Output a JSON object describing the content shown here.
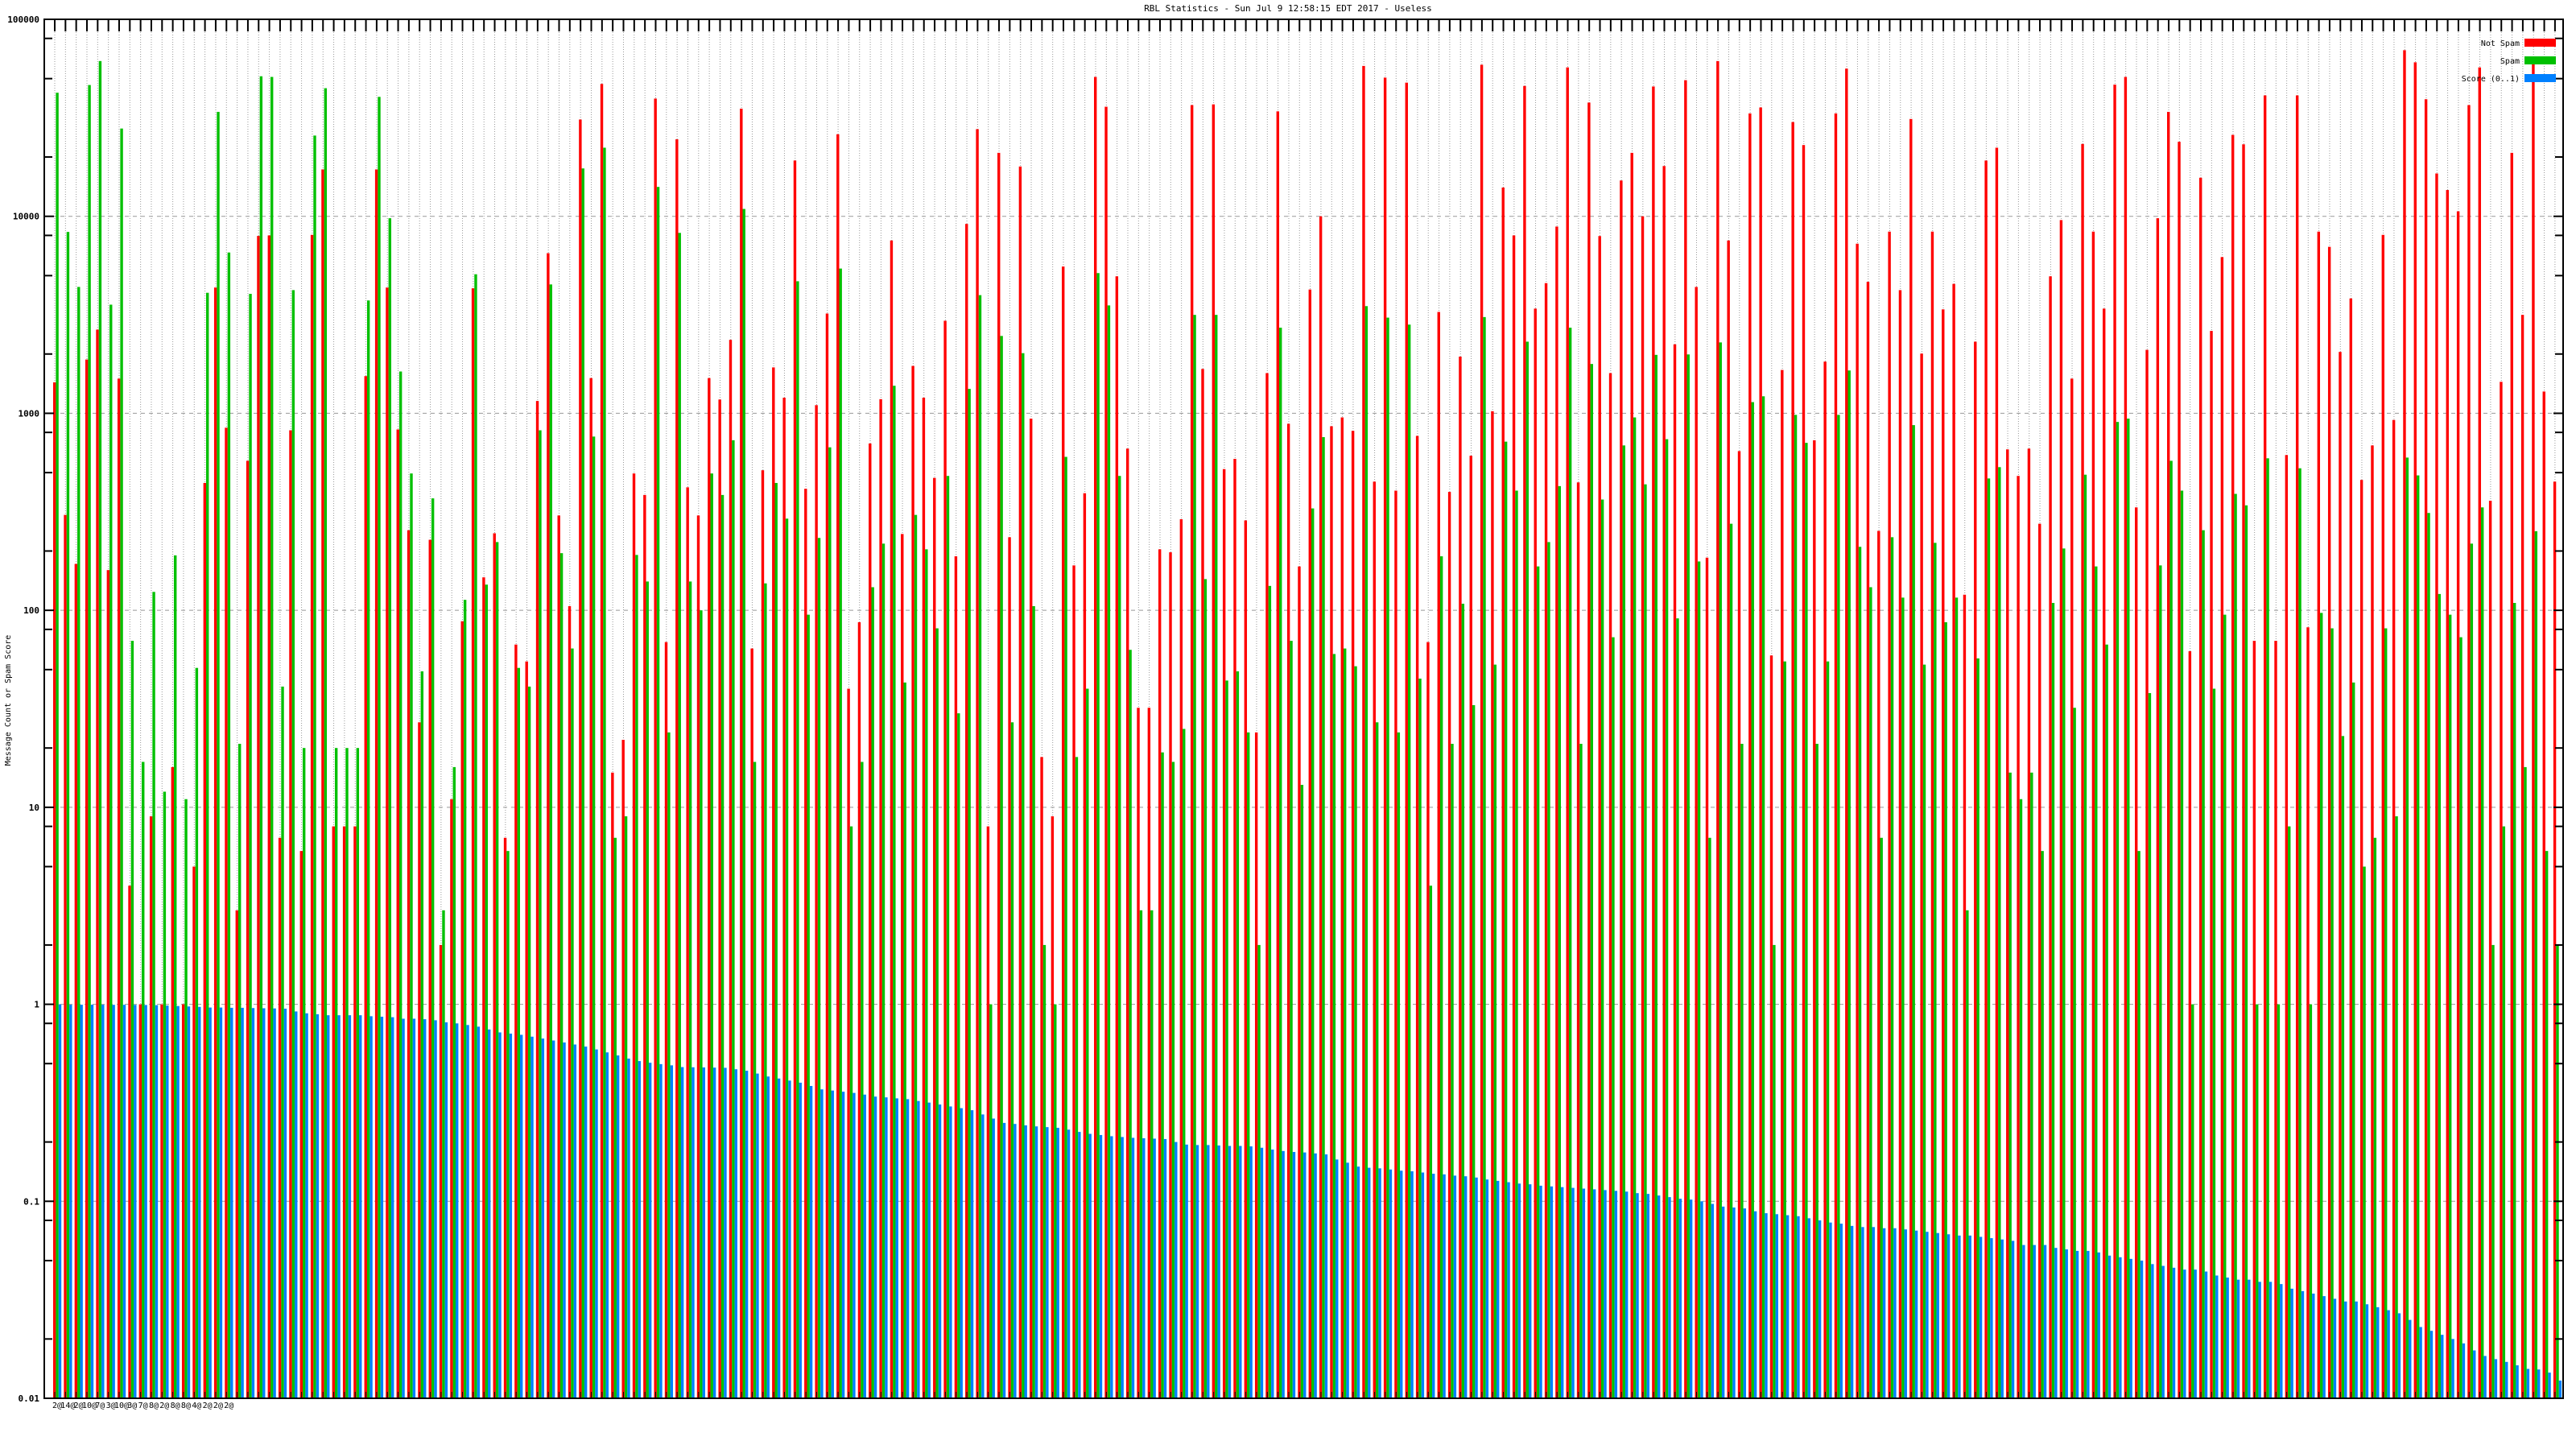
{
  "chart_data": {
    "type": "bar",
    "title": "RBL Statistics - Sun Jul  9 12:58:15 EDT 2017 - Useless",
    "xlabel": "",
    "ylabel": "Message Count or Spam Score",
    "yscale": "log",
    "ylim": [
      0.01,
      100000
    ],
    "ytick_labels": [
      "100000",
      "10000",
      "1000",
      "100",
      "10",
      "1",
      "0.1",
      "0.01"
    ],
    "ytick_values": [
      100000,
      10000,
      1000,
      100,
      10,
      1,
      0.1,
      0.01
    ],
    "grid": true,
    "legend_position": "top-right",
    "x_labels": [
      "2@",
      "14@",
      "2@",
      "10@",
      "7@",
      "3@",
      "10@",
      "3@",
      "7@",
      "8@",
      "2@",
      "8@",
      "8@",
      "4@",
      "2@",
      "2@",
      "2@"
    ],
    "series": [
      {
        "name": "Not Spam",
        "color": "#ff0000",
        "values": [
          1436,
          305,
          172,
          1875,
          2660,
          160,
          1500,
          4,
          1,
          9,
          1,
          16,
          1,
          5,
          443,
          4350,
          845,
          3,
          574,
          7950,
          8000,
          7,
          820,
          6,
          8050,
          17300,
          8,
          8,
          8,
          1545,
          17300,
          4350,
          828,
          255,
          27,
          228,
          2,
          11,
          88,
          4310,
          147,
          246,
          7,
          67,
          55,
          1155,
          6500,
          303,
          105,
          31000,
          1510,
          47000,
          15,
          22,
          495,
          385,
          39600,
          69,
          24600,
          421,
          303,
          1510,
          1175,
          2360,
          35200,
          64,
          514,
          1710,
          1200,
          19200,
          414,
          1100,
          3210,
          26100,
          40,
          87,
          703,
          1180,
          7540,
          244,
          1740,
          1200,
          470,
          2950,
          188,
          9150,
          27700,
          8,
          21000,
          235,
          17900,
          940,
          18,
          9,
          5560,
          169,
          393,
          51000,
          36000,
          4960,
          662,
          32,
          32,
          204,
          197,
          290,
          36700,
          1680,
          37000,
          521,
          587,
          286,
          24,
          1600,
          34100,
          885,
          167,
          4250,
          10000,
          860,
          953,
          815,
          58000,
          450,
          50600,
          405,
          47700,
          768,
          69,
          3270,
          399,
          1940,
          609,
          58800,
          1025,
          14000,
          8000,
          45900,
          3400,
          4580,
          8870,
          57000,
          446,
          37800,
          7940,
          1600,
          15200,
          21000,
          10000,
          45600,
          18000,
          2240,
          49100,
          4380,
          185,
          61400,
          7540,
          643,
          33300,
          35700,
          59,
          1660,
          30100,
          23000,
          730,
          1830,
          33300,
          56200,
          7260,
          4650,
          253,
          8360,
          4220,
          31200,
          2010,
          8360,
          3370,
          4540,
          120,
          2310,
          19200,
          22300,
          656,
          481,
          662,
          275,
          4960,
          9570,
          1500,
          23300,
          8360,
          3400,
          46600,
          51000,
          333,
          2100,
          9780,
          33900,
          23900,
          62,
          15700,
          2620,
          6210,
          25900,
          23200,
          70,
          41100,
          70,
          614,
          41100,
          82,
          8360,
          7000,
          2050,
          3830,
          459,
          687,
          8050,
          925,
          69700,
          60500,
          39300,
          16500,
          13600,
          10600,
          36700,
          57000,
          360,
          1445,
          21000,
          3160,
          63000,
          1290,
          450
        ]
      },
      {
        "name": "Spam",
        "color": "#00c000",
        "values": [
          42400,
          8330,
          4380,
          46400,
          61400,
          3560,
          27900,
          70,
          17,
          124,
          12,
          190,
          11,
          51,
          4090,
          33900,
          6550,
          21,
          4040,
          51400,
          51000,
          41,
          4220,
          20,
          25700,
          44700,
          20,
          20,
          20,
          3740,
          40400,
          9780,
          1630,
          495,
          49,
          370,
          3,
          16,
          113,
          5080,
          135,
          222,
          6,
          51,
          41,
          820,
          4510,
          195,
          64,
          17500,
          762,
          22300,
          7,
          9,
          191,
          140,
          14100,
          24,
          8240,
          140,
          100,
          495,
          385,
          730,
          10900,
          17,
          137,
          443,
          292,
          4680,
          95,
          233,
          672,
          5430,
          8,
          17,
          131,
          218,
          1380,
          43,
          305,
          204,
          81,
          481,
          30,
          1330,
          3980,
          1,
          2470,
          27,
          2020,
          105,
          2,
          1,
          601,
          18,
          40,
          5150,
          3530,
          481,
          63,
          3,
          3,
          19,
          17,
          25,
          3160,
          144,
          3160,
          44,
          49,
          24,
          2,
          133,
          2720,
          70,
          13,
          329,
          757,
          60,
          64,
          52,
          3500,
          27,
          3060,
          24,
          2820,
          45,
          4,
          188,
          21,
          108,
          33,
          3080,
          53,
          718,
          405,
          2310,
          167,
          222,
          427,
          2720,
          21,
          1780,
          365,
          73,
          687,
          953,
          436,
          1980,
          739,
          91,
          1990,
          177,
          7,
          2290,
          275,
          21,
          1140,
          1220,
          2,
          55,
          982,
          708,
          21,
          55,
          982,
          1650,
          210,
          131,
          7,
          235,
          116,
          871,
          53,
          220,
          87,
          116,
          3,
          57,
          467,
          533,
          15,
          11,
          15,
          6,
          109,
          206,
          32,
          488,
          167,
          67,
          904,
          940,
          6,
          38,
          169,
          574,
          405,
          1,
          255,
          40,
          95,
          390,
          341,
          1,
          591,
          1,
          8,
          526,
          1,
          97,
          81,
          23,
          43,
          5,
          7,
          81,
          9,
          596,
          484,
          312,
          121,
          95,
          73,
          218,
          333,
          2,
          8,
          109,
          16,
          252,
          6,
          2
        ]
      },
      {
        "name": "Score (0..1)",
        "color": "#0080ff",
        "values": [
          1.0,
          0.995,
          0.995,
          0.995,
          0.995,
          0.994,
          0.994,
          0.993,
          0.992,
          0.99,
          0.985,
          0.98,
          0.975,
          0.97,
          0.963,
          0.963,
          0.96,
          0.96,
          0.957,
          0.955,
          0.953,
          0.95,
          0.92,
          0.9,
          0.89,
          0.88,
          0.88,
          0.88,
          0.88,
          0.87,
          0.865,
          0.86,
          0.845,
          0.845,
          0.84,
          0.83,
          0.81,
          0.8,
          0.785,
          0.77,
          0.745,
          0.72,
          0.71,
          0.7,
          0.685,
          0.67,
          0.655,
          0.64,
          0.625,
          0.61,
          0.59,
          0.57,
          0.55,
          0.53,
          0.515,
          0.505,
          0.497,
          0.49,
          0.48,
          0.479,
          0.478,
          0.477,
          0.476,
          0.468,
          0.46,
          0.445,
          0.43,
          0.42,
          0.41,
          0.4,
          0.385,
          0.37,
          0.365,
          0.36,
          0.355,
          0.348,
          0.34,
          0.337,
          0.333,
          0.33,
          0.323,
          0.317,
          0.31,
          0.303,
          0.297,
          0.29,
          0.276,
          0.263,
          0.25,
          0.247,
          0.243,
          0.24,
          0.238,
          0.236,
          0.231,
          0.225,
          0.22,
          0.217,
          0.214,
          0.212,
          0.21,
          0.209,
          0.208,
          0.207,
          0.2,
          0.194,
          0.193,
          0.193,
          0.192,
          0.191,
          0.191,
          0.19,
          0.187,
          0.183,
          0.18,
          0.178,
          0.177,
          0.175,
          0.173,
          0.163,
          0.157,
          0.15,
          0.148,
          0.147,
          0.145,
          0.143,
          0.142,
          0.14,
          0.138,
          0.137,
          0.135,
          0.134,
          0.132,
          0.129,
          0.127,
          0.125,
          0.123,
          0.122,
          0.12,
          0.119,
          0.118,
          0.117,
          0.116,
          0.115,
          0.114,
          0.113,
          0.112,
          0.11,
          0.109,
          0.107,
          0.105,
          0.103,
          0.102,
          0.1,
          0.097,
          0.094,
          0.093,
          0.092,
          0.089,
          0.087,
          0.086,
          0.085,
          0.084,
          0.082,
          0.08,
          0.078,
          0.077,
          0.075,
          0.074,
          0.074,
          0.073,
          0.073,
          0.072,
          0.071,
          0.07,
          0.069,
          0.068,
          0.067,
          0.067,
          0.066,
          0.065,
          0.064,
          0.063,
          0.06,
          0.06,
          0.06,
          0.058,
          0.057,
          0.056,
          0.056,
          0.055,
          0.053,
          0.052,
          0.051,
          0.05,
          0.048,
          0.047,
          0.046,
          0.045,
          0.045,
          0.044,
          0.042,
          0.041,
          0.04,
          0.04,
          0.039,
          0.039,
          0.038,
          0.036,
          0.035,
          0.034,
          0.033,
          0.032,
          0.031,
          0.031,
          0.03,
          0.029,
          0.028,
          0.027,
          0.025,
          0.023,
          0.022,
          0.021,
          0.02,
          0.019,
          0.0175,
          0.0164,
          0.0158,
          0.0153,
          0.0147,
          0.0141,
          0.014,
          0.0135,
          0.0123
        ]
      }
    ]
  }
}
